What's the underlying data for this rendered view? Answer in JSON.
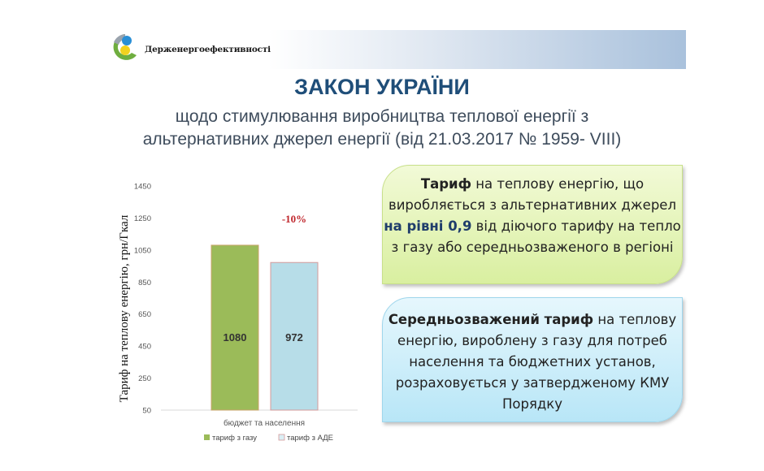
{
  "header": {
    "brand": "Держенергоефективності",
    "title": "ЗАКОН УКРАЇНИ",
    "subtitle_line1": "щодо стимулювання виробництва теплової енергії з",
    "subtitle_line2": "альтернативних джерел енергії (від 21.03.2017 № 1959- VIII)"
  },
  "box1": {
    "bold_lead": "Тариф",
    "text1": " на теплову енергію, що виробляється з альтернативних джерел ",
    "highlight": "на рівні 0,9",
    "text2": " від діючого тарифу на тепло з газу або середньозваженого  в регіоні",
    "color": "#d9efa0"
  },
  "box2": {
    "bold_lead": "Середньозважений тариф",
    "text": " на теплову енергію, вироблену з газу для потреб населення та бюджетних установ, розраховується у затвердженому КМУ Порядку",
    "color": "#b8e6f7"
  },
  "chart_data": {
    "type": "bar",
    "categories": [
      "бюджет та населення"
    ],
    "series": [
      {
        "name": "тариф з газу",
        "values": [
          1080
        ],
        "color": "#9bbb59"
      },
      {
        "name": "тариф з АДЕ",
        "values": [
          972
        ],
        "color": "#b7dde8"
      }
    ],
    "data_labels": [
      "1080",
      "972"
    ],
    "annotation": "-10%",
    "annotation_color": "#c0272d",
    "ylabel": "Тариф на теплову енергію, грн/Гкал",
    "ylim": [
      50,
      1450
    ],
    "yticks": [
      "50",
      "250",
      "450",
      "650",
      "850",
      "1050",
      "1250",
      "1450"
    ],
    "grid": false,
    "legend_position": "bottom"
  }
}
